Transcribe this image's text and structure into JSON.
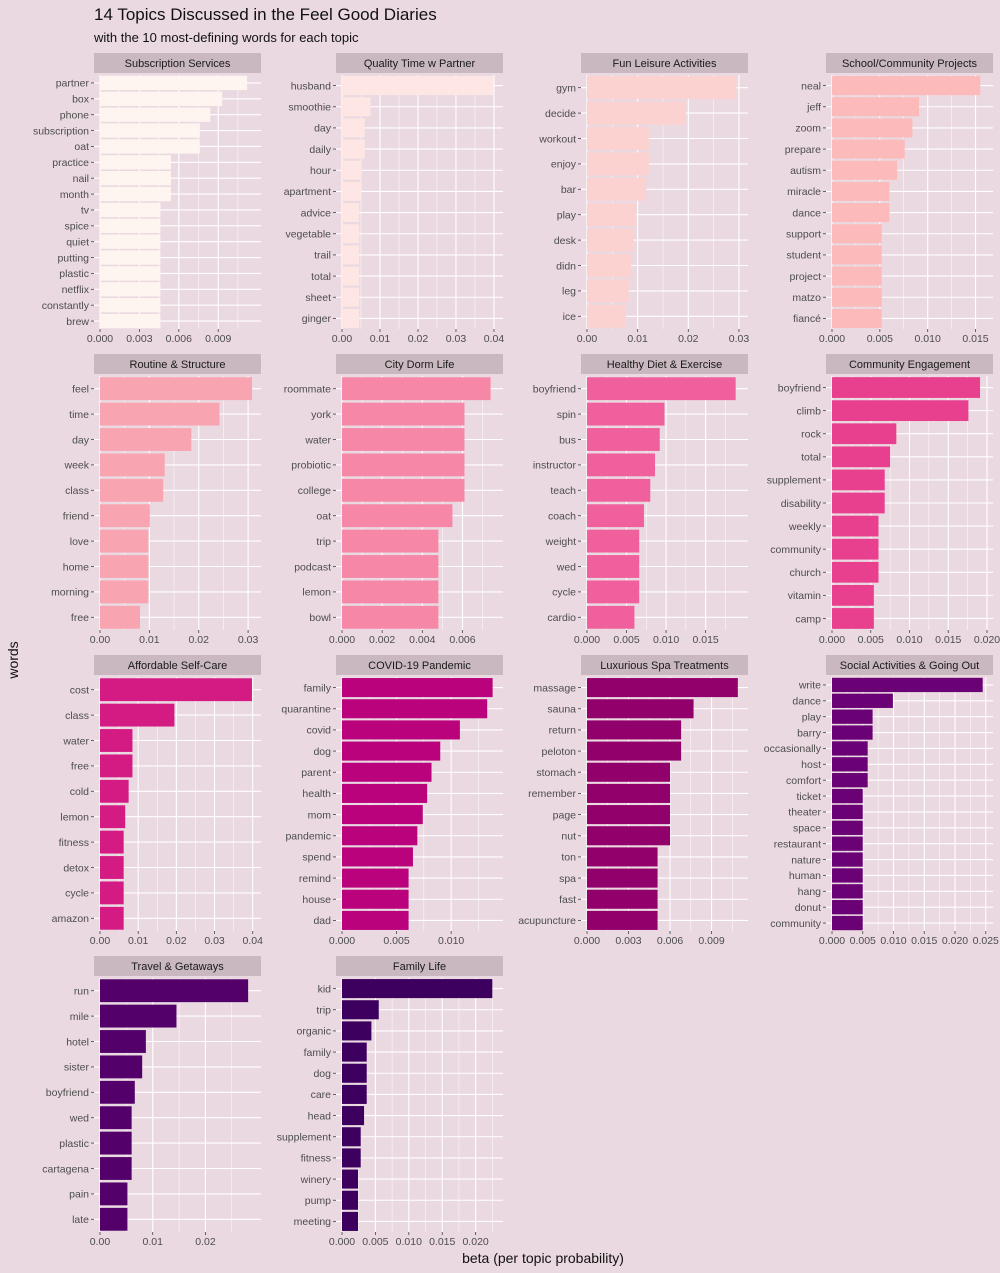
{
  "chart_data": {
    "type": "bar",
    "orientation": "horizontal",
    "title": "14 Topics Discussed in the Feel Good Diaries",
    "subtitle": "with the 10 most-defining words for each topic",
    "xlabel": "beta (per topic probability)",
    "ylabel": "words",
    "grid": true,
    "facets": [
      {
        "name": "Subscription Services",
        "color": "#fff5f0",
        "xlim": [
          0,
          0.0118
        ],
        "ticks": [
          0,
          0.003,
          0.006,
          0.009
        ],
        "tick_labels": [
          "0.000",
          "0.003",
          "0.006",
          "0.009"
        ],
        "categories": [
          "partner",
          "box",
          "phone",
          "subscription",
          "oat",
          "practice",
          "nail",
          "month",
          "tv",
          "spice",
          "quiet",
          "putting",
          "plastic",
          "netflix",
          "constantly",
          "brew"
        ],
        "values": [
          0.0112,
          0.0093,
          0.0084,
          0.0076,
          0.0076,
          0.0054,
          0.0054,
          0.0054,
          0.0046,
          0.0046,
          0.0046,
          0.0046,
          0.0046,
          0.0046,
          0.0046,
          0.0046
        ]
      },
      {
        "name": "Quality Time w Partner",
        "color": "#fde6e3",
        "xlim": [
          0,
          0.0408
        ],
        "ticks": [
          0,
          0.01,
          0.02,
          0.03,
          0.04
        ],
        "tick_labels": [
          "0.00",
          "0.01",
          "0.02",
          "0.03",
          "0.04"
        ],
        "categories": [
          "husband",
          "smoothie",
          "day",
          "daily",
          "hour",
          "apartment",
          "advice",
          "vegetable",
          "trail",
          "total",
          "sheet",
          "ginger"
        ],
        "values": [
          0.0398,
          0.0075,
          0.006,
          0.006,
          0.005,
          0.005,
          0.0045,
          0.0045,
          0.0045,
          0.0045,
          0.0045,
          0.0045
        ]
      },
      {
        "name": "Fun Leisure Activities",
        "color": "#fcd2d1",
        "xlim": [
          0,
          0.0306
        ],
        "ticks": [
          0,
          0.01,
          0.02,
          0.03
        ],
        "tick_labels": [
          "0.00",
          "0.01",
          "0.02",
          "0.03"
        ],
        "categories": [
          "gym",
          "decide",
          "workout",
          "enjoy",
          "bar",
          "play",
          "desk",
          "didn",
          "leg",
          "ice"
        ],
        "values": [
          0.0295,
          0.0195,
          0.0122,
          0.0122,
          0.0117,
          0.0097,
          0.0092,
          0.0087,
          0.0082,
          0.0077
        ]
      },
      {
        "name": "School/Community Projects",
        "color": "#fcbaba",
        "xlim": [
          0,
          0.0162
        ],
        "ticks": [
          0,
          0.005,
          0.01,
          0.015
        ],
        "tick_labels": [
          "0.000",
          "0.005",
          "0.010",
          "0.015"
        ],
        "categories": [
          "neal",
          "jeff",
          "zoom",
          "prepare",
          "autism",
          "miracle",
          "dance",
          "support",
          "student",
          "project",
          "matzo",
          "fiancé"
        ],
        "values": [
          0.0155,
          0.0091,
          0.0084,
          0.0076,
          0.0068,
          0.006,
          0.006,
          0.0052,
          0.0052,
          0.0052,
          0.0052,
          0.0052
        ]
      },
      {
        "name": "Routine & Structure",
        "color": "#f9a4b1",
        "xlim": [
          0,
          0.0314
        ],
        "ticks": [
          0,
          0.01,
          0.02,
          0.03
        ],
        "tick_labels": [
          "0.00",
          "0.01",
          "0.02",
          "0.03"
        ],
        "categories": [
          "feel",
          "time",
          "day",
          "week",
          "class",
          "friend",
          "love",
          "home",
          "morning",
          "free"
        ],
        "values": [
          0.0308,
          0.0242,
          0.0185,
          0.0131,
          0.0128,
          0.0101,
          0.0098,
          0.0098,
          0.0098,
          0.0081
        ]
      },
      {
        "name": "City Dorm Life",
        "color": "#f687a7",
        "xlim": [
          0,
          0.00772
        ],
        "ticks": [
          0,
          0.002,
          0.004,
          0.006
        ],
        "tick_labels": [
          "0.000",
          "0.002",
          "0.004",
          "0.006"
        ],
        "categories": [
          "roommate",
          "york",
          "water",
          "probiotic",
          "college",
          "oat",
          "trip",
          "podcast",
          "lemon",
          "bowl"
        ],
        "values": [
          0.0074,
          0.0061,
          0.0061,
          0.0061,
          0.0061,
          0.0055,
          0.0048,
          0.0048,
          0.0048,
          0.0048
        ]
      },
      {
        "name": "Healthy Diet & Exercise",
        "color": "#f0609c",
        "xlim": [
          0,
          0.0196
        ],
        "ticks": [
          0,
          0.005,
          0.01,
          0.015
        ],
        "tick_labels": [
          "0.000",
          "0.005",
          "0.010",
          "0.015"
        ],
        "categories": [
          "boyfriend",
          "spin",
          "bus",
          "instructor",
          "teach",
          "coach",
          "weight",
          "wed",
          "cycle",
          "cardio"
        ],
        "values": [
          0.0188,
          0.0098,
          0.0092,
          0.0086,
          0.008,
          0.0072,
          0.0066,
          0.0066,
          0.0066,
          0.006
        ]
      },
      {
        "name": "Community Engagement",
        "color": "#e8408f",
        "xlim": [
          0,
          0.02
        ],
        "ticks": [
          0,
          0.005,
          0.01,
          0.015,
          0.02
        ],
        "tick_labels": [
          "0.000",
          "0.005",
          "0.010",
          "0.015",
          "0.020"
        ],
        "categories": [
          "boyfriend",
          "climb",
          "rock",
          "total",
          "supplement",
          "disability",
          "weekly",
          "community",
          "church",
          "vitamin",
          "camp"
        ],
        "values": [
          0.0191,
          0.0176,
          0.0083,
          0.0075,
          0.0068,
          0.0068,
          0.006,
          0.006,
          0.006,
          0.0054,
          0.0054
        ]
      },
      {
        "name": "Affordable Self-Care",
        "color": "#d41b84",
        "xlim": [
          0,
          0.0406
        ],
        "ticks": [
          0,
          0.01,
          0.02,
          0.03,
          0.04
        ],
        "tick_labels": [
          "0.00",
          "0.01",
          "0.02",
          "0.03",
          "0.04"
        ],
        "categories": [
          "cost",
          "class",
          "water",
          "free",
          "cold",
          "lemon",
          "fitness",
          "detox",
          "cycle",
          "amazon"
        ],
        "values": [
          0.0398,
          0.0195,
          0.0085,
          0.0085,
          0.0075,
          0.0066,
          0.0062,
          0.0062,
          0.0062,
          0.0062
        ]
      },
      {
        "name": "COVID-19 Pandemic",
        "color": "#b9027c",
        "xlim": [
          0,
          0.0142
        ],
        "ticks": [
          0,
          0.005,
          0.01
        ],
        "tick_labels": [
          "0.000",
          "0.005",
          "0.010"
        ],
        "categories": [
          "family",
          "quarantine",
          "covid",
          "dog",
          "parent",
          "health",
          "mom",
          "pandemic",
          "spend",
          "remind",
          "house",
          "dad"
        ],
        "values": [
          0.0138,
          0.0133,
          0.0108,
          0.009,
          0.0082,
          0.0078,
          0.0074,
          0.0069,
          0.0065,
          0.0061,
          0.0061,
          0.0061
        ]
      },
      {
        "name": "Luxurious Spa Treatments",
        "color": "#92016b",
        "xlim": [
          0,
          0.0112
        ],
        "ticks": [
          0,
          0.003,
          0.006,
          0.009
        ],
        "tick_labels": [
          "0.000",
          "0.003",
          "0.006",
          "0.009"
        ],
        "categories": [
          "massage",
          "sauna",
          "return",
          "peloton",
          "stomach",
          "remember",
          "page",
          "nut",
          "ton",
          "spa",
          "fast",
          "acupuncture"
        ],
        "values": [
          0.0109,
          0.0077,
          0.0068,
          0.0068,
          0.006,
          0.006,
          0.006,
          0.006,
          0.0051,
          0.0051,
          0.0051,
          0.0051
        ]
      },
      {
        "name": "Social Activities & Going Out",
        "color": "#6a0175",
        "xlim": [
          0,
          0.0252
        ],
        "ticks": [
          0,
          0.005,
          0.01,
          0.015,
          0.02,
          0.025
        ],
        "tick_labels": [
          "0.000",
          "0.005",
          "0.010",
          "0.015",
          "0.020",
          "0.025"
        ],
        "categories": [
          "write",
          "dance",
          "play",
          "barry",
          "occasionally",
          "host",
          "comfort",
          "ticket",
          "theater",
          "space",
          "restaurant",
          "nature",
          "human",
          "hang",
          "donut",
          "community"
        ],
        "values": [
          0.0245,
          0.0099,
          0.0066,
          0.0066,
          0.0058,
          0.0058,
          0.0058,
          0.005,
          0.005,
          0.005,
          0.005,
          0.005,
          0.005,
          0.005,
          0.005,
          0.005
        ]
      },
      {
        "name": "Travel & Getaways",
        "color": "#54006b",
        "xlim": [
          0,
          0.0294
        ],
        "ticks": [
          0,
          0.01,
          0.02
        ],
        "tick_labels": [
          "0.00",
          "0.01",
          "0.02"
        ],
        "categories": [
          "run",
          "mile",
          "hotel",
          "sister",
          "boyfriend",
          "wed",
          "plastic",
          "cartagena",
          "pain",
          "late"
        ],
        "values": [
          0.0281,
          0.0145,
          0.0087,
          0.008,
          0.0066,
          0.006,
          0.006,
          0.006,
          0.0052,
          0.0052
        ]
      },
      {
        "name": "Family Life",
        "color": "#3d005e",
        "xlim": [
          0,
          0.0232
        ],
        "ticks": [
          0,
          0.005,
          0.01,
          0.015,
          0.02
        ],
        "tick_labels": [
          "0.000",
          "0.005",
          "0.010",
          "0.015",
          "0.020"
        ],
        "categories": [
          "kid",
          "trip",
          "organic",
          "family",
          "dog",
          "care",
          "head",
          "supplement",
          "fitness",
          "winery",
          "pump",
          "meeting"
        ],
        "values": [
          0.0225,
          0.0055,
          0.0044,
          0.0037,
          0.0037,
          0.0037,
          0.0033,
          0.0028,
          0.0028,
          0.0024,
          0.0024,
          0.0024
        ]
      }
    ]
  }
}
